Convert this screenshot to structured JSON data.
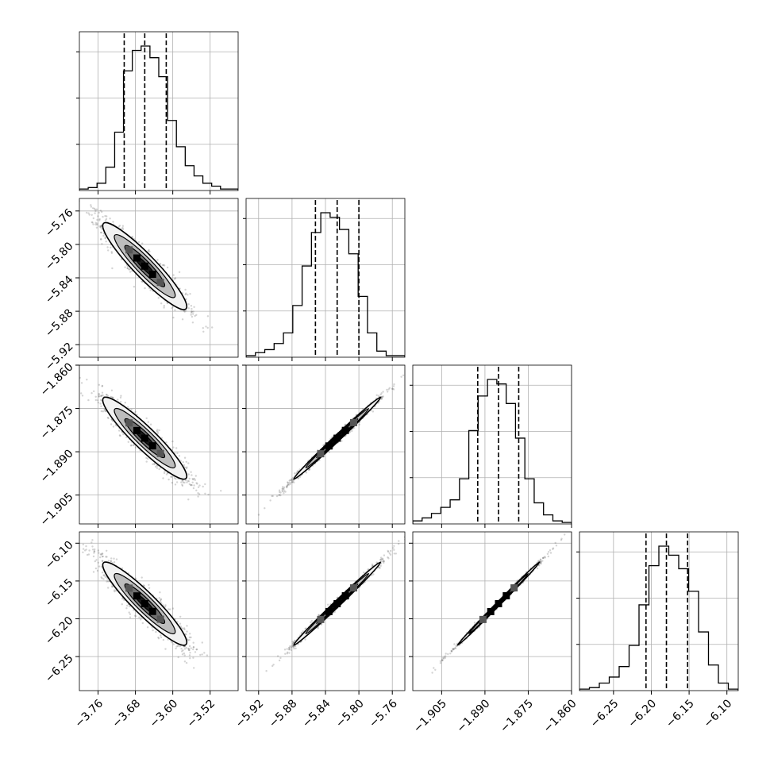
{
  "chart_data": {
    "type": "corner",
    "parameters": [
      {
        "ticks": [
          -3.76,
          -3.68,
          -3.6,
          -3.52
        ],
        "tick_labels": [
          "−3.76",
          "−3.68",
          "−3.60",
          "−3.52"
        ],
        "range": [
          -3.8,
          -3.46
        ],
        "quantiles": [
          -3.704,
          -3.66,
          -3.614
        ]
      },
      {
        "ticks": [
          -5.92,
          -5.88,
          -5.84,
          -5.8,
          -5.76
        ],
        "tick_labels": [
          "−5.92",
          "−5.88",
          "−5.84",
          "−5.80",
          "−5.76"
        ],
        "range": [
          -5.935,
          -5.745
        ],
        "quantiles": [
          -5.852,
          -5.826,
          -5.8
        ]
      },
      {
        "ticks": [
          -1.905,
          -1.89,
          -1.875,
          -1.86
        ],
        "tick_labels": [
          "−1.905",
          "−1.890",
          "−1.875",
          "−1.860"
        ],
        "range": [
          -1.915,
          -1.86
        ],
        "quantiles": [
          -1.8925,
          -1.8853,
          -1.8783
        ]
      },
      {
        "ticks": [
          -6.25,
          -6.2,
          -6.15,
          -6.1
        ],
        "tick_labels": [
          "−6.25",
          "−6.20",
          "−6.15",
          "−6.10"
        ],
        "range": [
          -6.295,
          -6.085
        ],
        "quantiles": [
          -6.207,
          -6.18,
          -6.152
        ]
      }
    ],
    "histograms": [
      [
        1,
        2,
        5,
        16,
        40,
        82,
        96,
        99,
        91,
        78,
        48,
        30,
        17,
        10,
        5,
        3,
        1,
        1
      ],
      [
        1,
        3,
        5,
        9,
        16,
        34,
        60,
        82,
        95,
        92,
        84,
        68,
        40,
        16,
        4,
        1,
        1
      ],
      [
        2,
        4,
        7,
        11,
        16,
        30,
        62,
        85,
        96,
        93,
        80,
        57,
        30,
        14,
        6,
        2,
        1
      ],
      [
        1,
        2,
        5,
        9,
        16,
        30,
        57,
        83,
        96,
        90,
        81,
        66,
        39,
        17,
        5,
        1
      ]
    ],
    "correlations": [
      [
        1,
        -0.93,
        -0.93,
        -0.93
      ],
      [
        -0.93,
        1,
        0.995,
        0.995
      ],
      [
        -0.93,
        0.995,
        1,
        0.998
      ],
      [
        -0.93,
        0.995,
        0.998,
        1
      ]
    ],
    "grid": true,
    "legend": "none"
  }
}
